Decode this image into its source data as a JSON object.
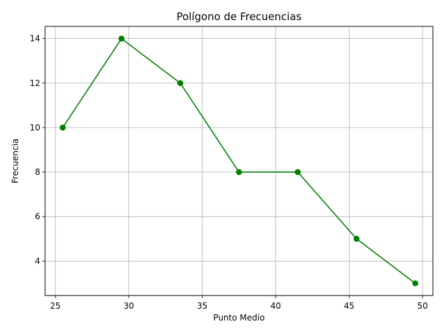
{
  "chart_data": {
    "type": "line",
    "title": "Polígono de Frecuencias",
    "xlabel": "Punto Medio",
    "ylabel": "Frecuencia",
    "x": [
      25.5,
      29.5,
      33.5,
      37.5,
      41.5,
      45.5,
      49.5
    ],
    "series": [
      {
        "values": [
          10,
          14,
          12,
          8,
          8,
          5,
          3
        ],
        "color": "#008000",
        "marker": "circle"
      }
    ],
    "xlim": [
      24.3,
      50.7
    ],
    "ylim": [
      2.45,
      14.55
    ],
    "xticks": [
      25,
      30,
      35,
      40,
      45,
      50
    ],
    "yticks": [
      4,
      6,
      8,
      10,
      12,
      14
    ],
    "grid": true,
    "legend": "none"
  }
}
